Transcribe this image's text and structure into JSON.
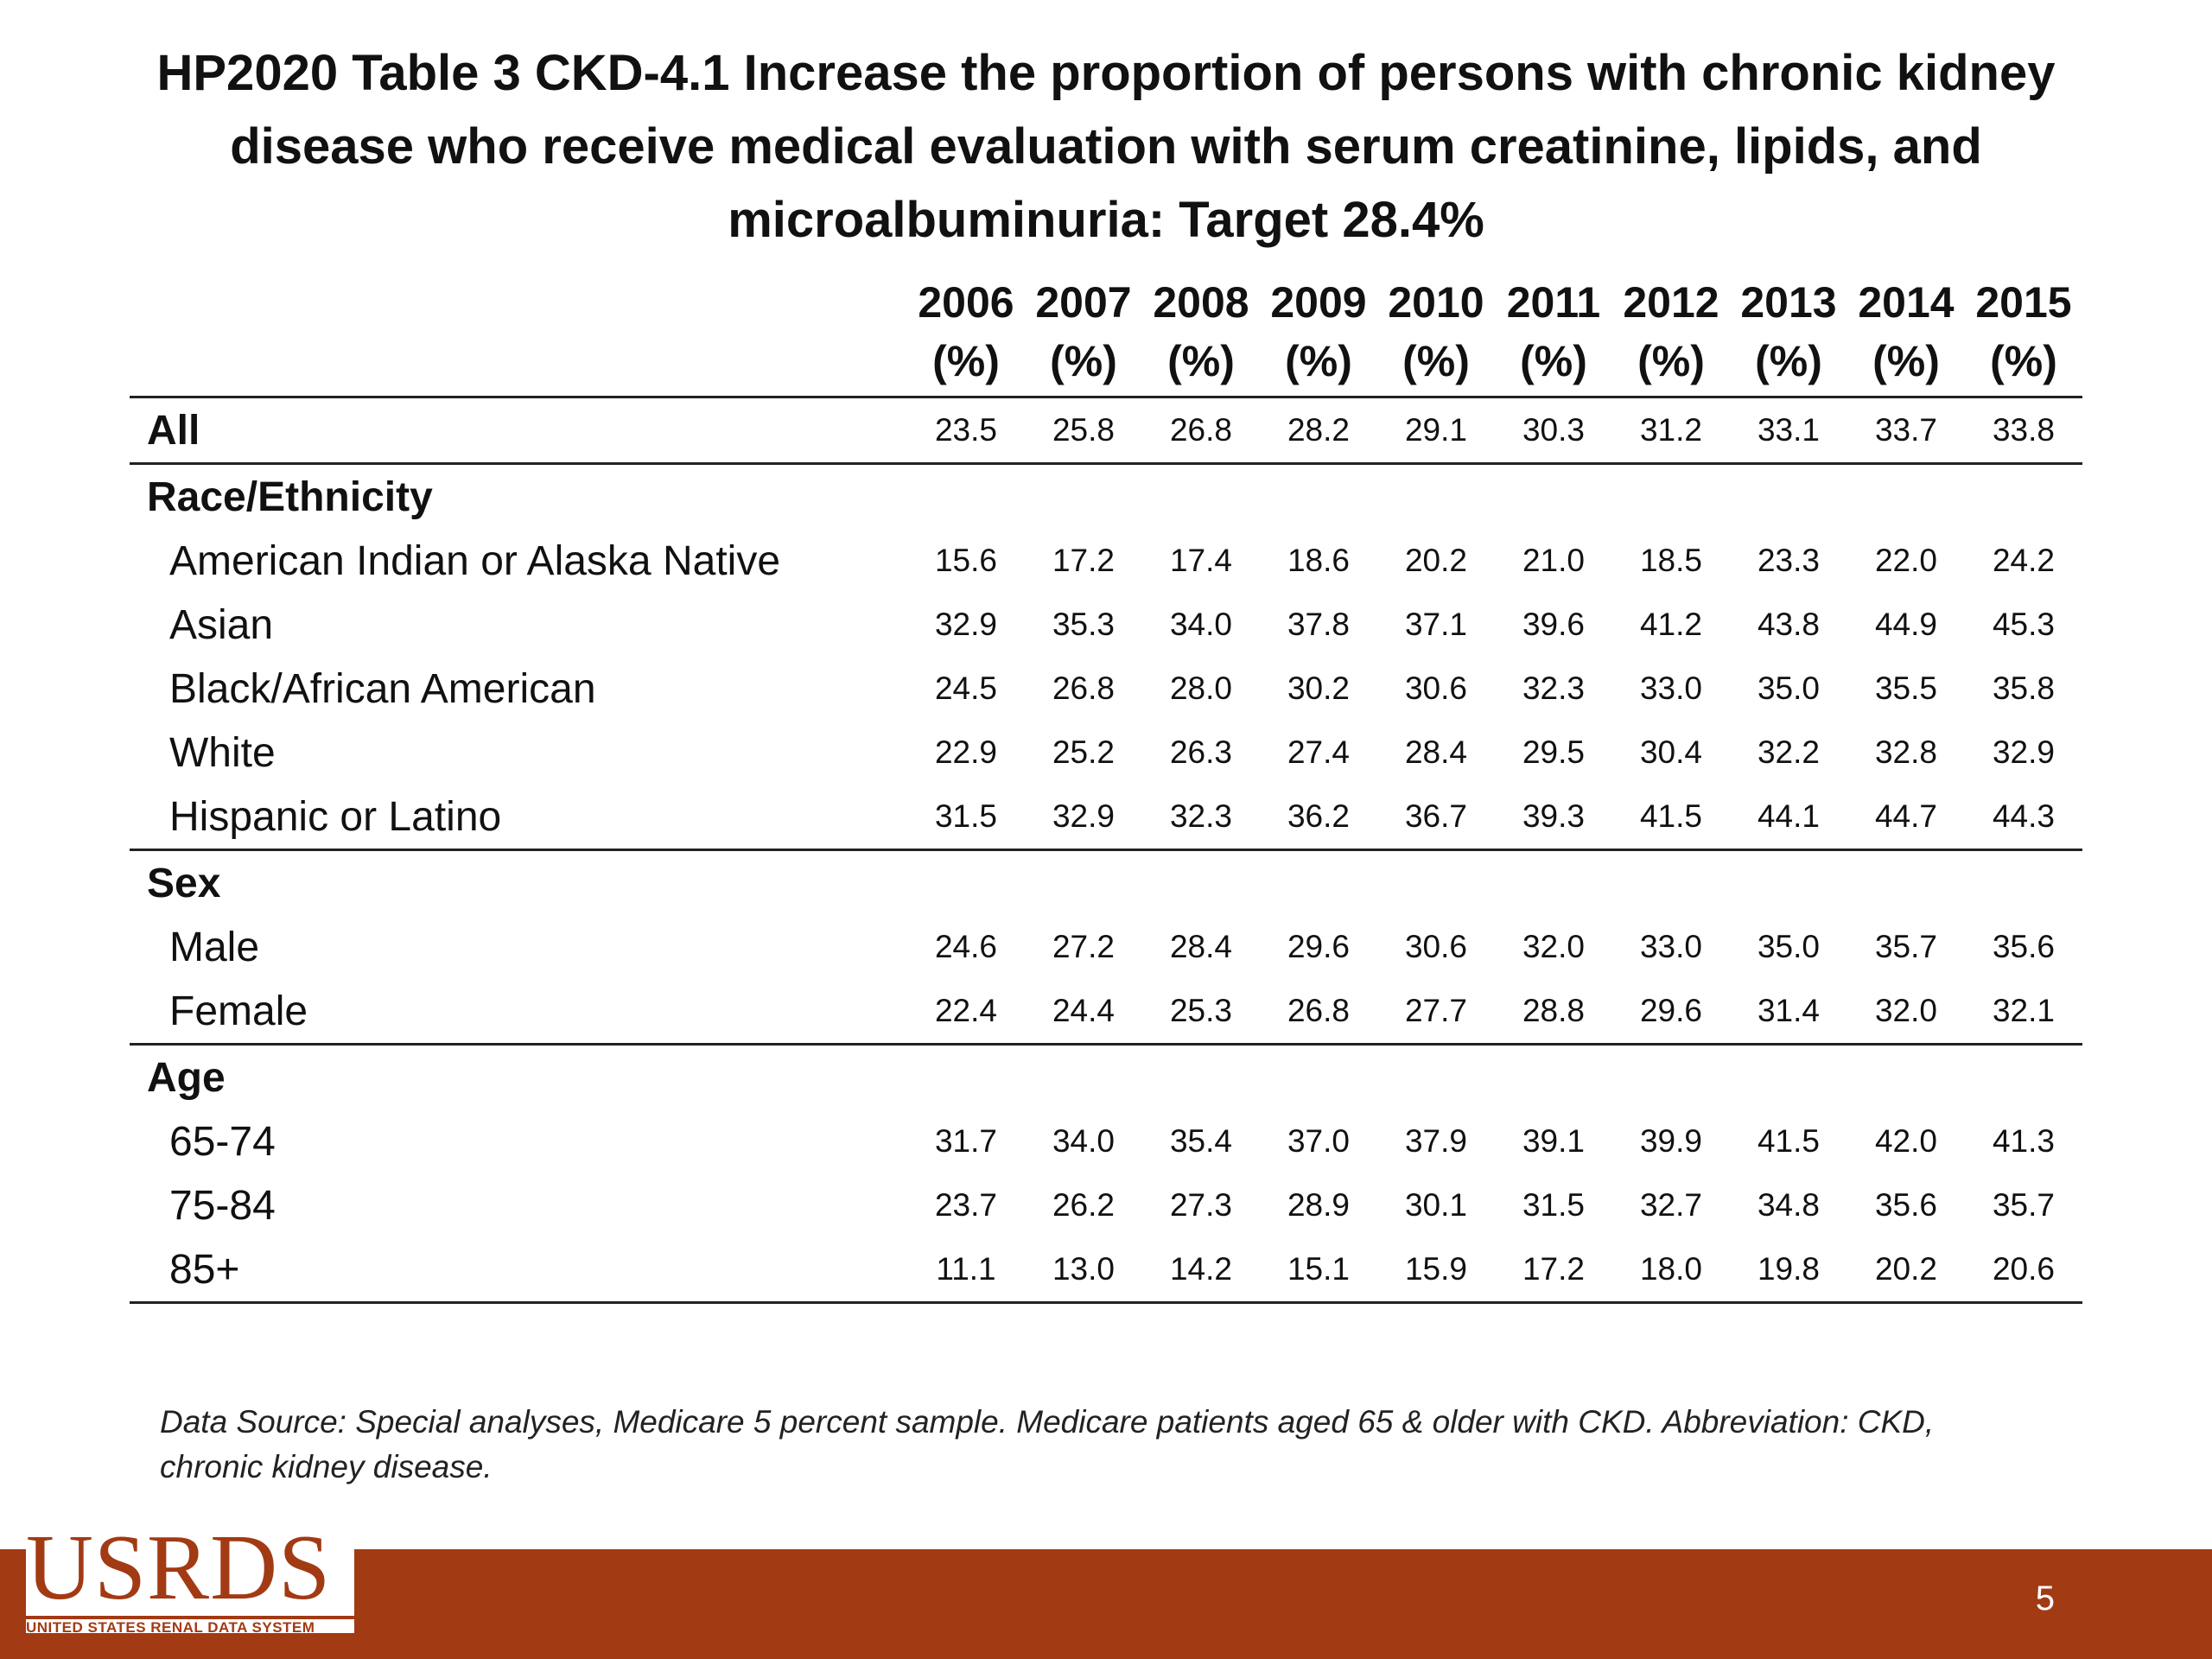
{
  "slide": {
    "title_lines": [
      "HP2020 Table 3 CKD-4.1 Increase the proportion of persons with chronic kidney",
      "disease who receive medical evaluation with serum creatinine, lipids, and",
      "microalbuminuria: Target 28.4%"
    ],
    "page_number": "5"
  },
  "table": {
    "years": [
      "2006",
      "2007",
      "2008",
      "2009",
      "2010",
      "2011",
      "2012",
      "2013",
      "2014",
      "2015"
    ],
    "unit": "(%)",
    "rows": [
      {
        "label": "All",
        "values": [
          "23.5",
          "25.8",
          "26.8",
          "28.2",
          "29.1",
          "30.3",
          "31.2",
          "33.1",
          "33.7",
          "33.8"
        ]
      },
      {
        "label": "Race/Ethnicity"
      },
      {
        "label": "American Indian or Alaska Native",
        "values": [
          "15.6",
          "17.2",
          "17.4",
          "18.6",
          "20.2",
          "21.0",
          "18.5",
          "23.3",
          "22.0",
          "24.2"
        ]
      },
      {
        "label": "Asian",
        "values": [
          "32.9",
          "35.3",
          "34.0",
          "37.8",
          "37.1",
          "39.6",
          "41.2",
          "43.8",
          "44.9",
          "45.3"
        ]
      },
      {
        "label": "Black/African American",
        "values": [
          "24.5",
          "26.8",
          "28.0",
          "30.2",
          "30.6",
          "32.3",
          "33.0",
          "35.0",
          "35.5",
          "35.8"
        ]
      },
      {
        "label": "White",
        "values": [
          "22.9",
          "25.2",
          "26.3",
          "27.4",
          "28.4",
          "29.5",
          "30.4",
          "32.2",
          "32.8",
          "32.9"
        ]
      },
      {
        "label": "Hispanic or Latino",
        "values": [
          "31.5",
          "32.9",
          "32.3",
          "36.2",
          "36.7",
          "39.3",
          "41.5",
          "44.1",
          "44.7",
          "44.3"
        ]
      },
      {
        "label": "Sex"
      },
      {
        "label": "Male",
        "values": [
          "24.6",
          "27.2",
          "28.4",
          "29.6",
          "30.6",
          "32.0",
          "33.0",
          "35.0",
          "35.7",
          "35.6"
        ]
      },
      {
        "label": "Female",
        "values": [
          "22.4",
          "24.4",
          "25.3",
          "26.8",
          "27.7",
          "28.8",
          "29.6",
          "31.4",
          "32.0",
          "32.1"
        ]
      },
      {
        "label": "Age"
      },
      {
        "label": "65-74",
        "values": [
          "31.7",
          "34.0",
          "35.4",
          "37.0",
          "37.9",
          "39.1",
          "39.9",
          "41.5",
          "42.0",
          "41.3"
        ]
      },
      {
        "label": "75-84",
        "values": [
          "23.7",
          "26.2",
          "27.3",
          "28.9",
          "30.1",
          "31.5",
          "32.7",
          "34.8",
          "35.6",
          "35.7"
        ]
      },
      {
        "label": "85+",
        "values": [
          "11.1",
          "13.0",
          "14.2",
          "15.1",
          "15.9",
          "17.2",
          "18.0",
          "19.8",
          "20.2",
          "20.6"
        ]
      }
    ]
  },
  "footnote": {
    "line1": "Data Source: Special analyses, Medicare 5 percent sample. Medicare patients aged 65 & older with CKD. Abbreviation: CKD,",
    "line2": "chronic kidney disease."
  },
  "logo": {
    "main": "USRDS",
    "sub": "UNITED STATES RENAL DATA SYSTEM"
  },
  "colors": {
    "footer_bar": "#a23a14",
    "logo": "#a23a14"
  }
}
